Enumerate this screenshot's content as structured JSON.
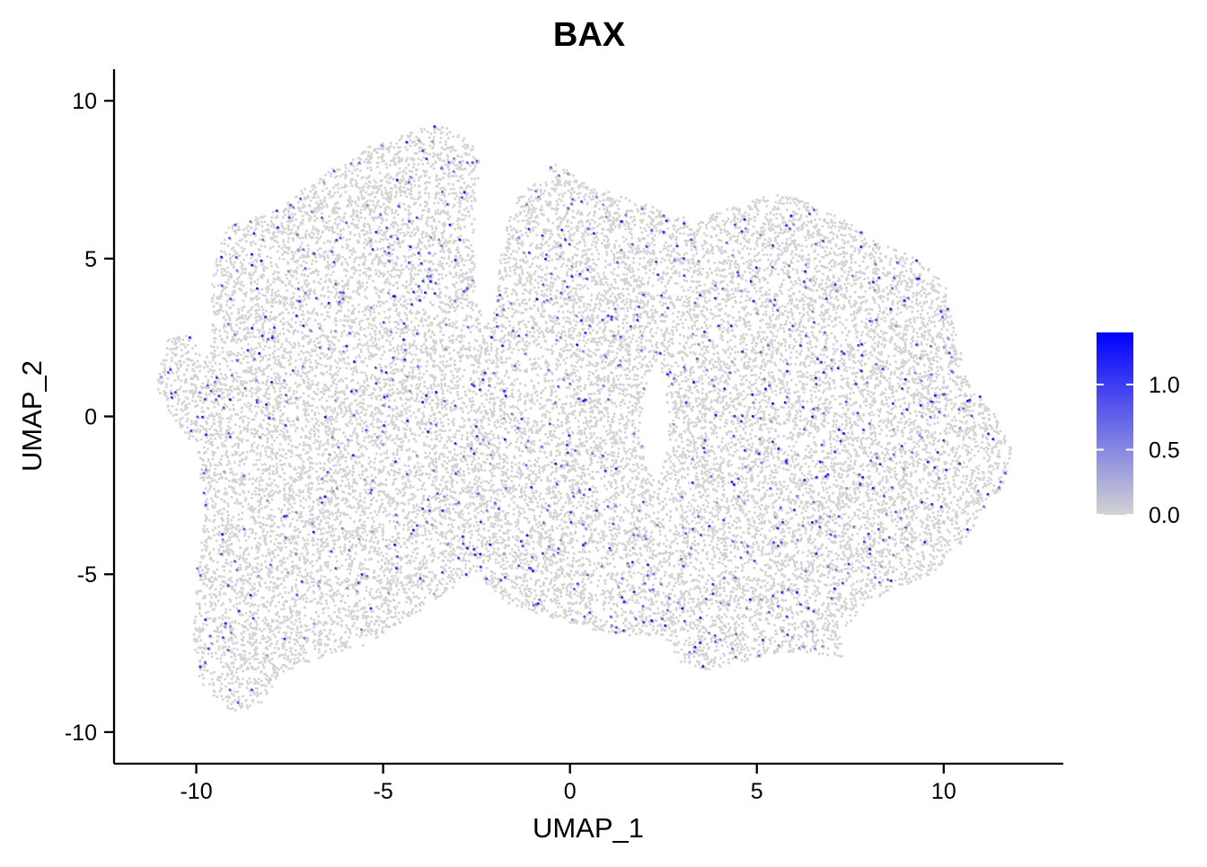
{
  "chart_data": {
    "type": "scatter",
    "title": "BAX",
    "xlabel": "UMAP_1",
    "ylabel": "UMAP_2",
    "xlim": [
      -12.2,
      13.2
    ],
    "ylim": [
      -11.0,
      11.0
    ],
    "x_ticks": [
      {
        "value": -10,
        "label": "-10"
      },
      {
        "value": -5,
        "label": "-5"
      },
      {
        "value": 0,
        "label": "0"
      },
      {
        "value": 5,
        "label": "5"
      },
      {
        "value": 10,
        "label": "10"
      }
    ],
    "y_ticks": [
      {
        "value": 10,
        "label": "10"
      },
      {
        "value": 5,
        "label": "5"
      },
      {
        "value": 0,
        "label": "0"
      },
      {
        "value": -5,
        "label": "-5"
      },
      {
        "value": -10,
        "label": "-10"
      }
    ],
    "grid": false,
    "legend_position": "right",
    "color_scale": {
      "low": "#d3d3d3",
      "high": "#0000ff",
      "min": 0.0,
      "max": 1.4,
      "ticks": [
        {
          "value": 1.0,
          "label": "1.0"
        },
        {
          "value": 0.5,
          "label": "0.5"
        },
        {
          "value": 0.0,
          "label": "0.0"
        }
      ]
    },
    "cell_cloud": {
      "count": 22000,
      "boundary": [
        [
          -10.8,
          2.5
        ],
        [
          -10.2,
          2.6
        ],
        [
          -9.8,
          1.8
        ],
        [
          -9.6,
          4.5
        ],
        [
          -9.3,
          6.0
        ],
        [
          -7.8,
          6.6
        ],
        [
          -6.8,
          7.6
        ],
        [
          -5.6,
          8.5
        ],
        [
          -4.5,
          9.0
        ],
        [
          -3.5,
          9.3
        ],
        [
          -2.7,
          8.8
        ],
        [
          -2.3,
          7.6
        ],
        [
          -2.6,
          6.1
        ],
        [
          -2.2,
          5.1
        ],
        [
          -1.9,
          5.1
        ],
        [
          -1.6,
          6.7
        ],
        [
          -1.0,
          7.5
        ],
        [
          -0.4,
          8.1
        ],
        [
          0.5,
          7.3
        ],
        [
          1.5,
          7.0
        ],
        [
          2.6,
          6.5
        ],
        [
          3.4,
          6.2
        ],
        [
          4.6,
          6.9
        ],
        [
          5.8,
          7.1
        ],
        [
          7.0,
          6.5
        ],
        [
          8.0,
          5.7
        ],
        [
          9.3,
          5.0
        ],
        [
          10.0,
          4.3
        ],
        [
          10.3,
          2.6
        ],
        [
          10.7,
          1.0
        ],
        [
          11.3,
          0.2
        ],
        [
          11.8,
          -1.0
        ],
        [
          11.6,
          -2.1
        ],
        [
          11.0,
          -3.0
        ],
        [
          10.5,
          -4.0
        ],
        [
          9.5,
          -5.1
        ],
        [
          8.0,
          -5.8
        ],
        [
          7.2,
          -6.8
        ],
        [
          7.3,
          -7.6
        ],
        [
          5.6,
          -7.4
        ],
        [
          4.8,
          -7.7
        ],
        [
          3.6,
          -8.0
        ],
        [
          2.9,
          -7.8
        ],
        [
          2.5,
          -6.9
        ],
        [
          1.5,
          -6.9
        ],
        [
          0.5,
          -6.7
        ],
        [
          -0.6,
          -6.3
        ],
        [
          -1.7,
          -5.9
        ],
        [
          -2.6,
          -4.9
        ],
        [
          -4.0,
          -6.1
        ],
        [
          -5.5,
          -7.2
        ],
        [
          -6.7,
          -7.6
        ],
        [
          -7.8,
          -8.1
        ],
        [
          -8.3,
          -9.2
        ],
        [
          -9.1,
          -9.3
        ],
        [
          -9.9,
          -8.6
        ],
        [
          -10.1,
          -7.0
        ],
        [
          -10.0,
          -5.0
        ],
        [
          -9.8,
          -3.0
        ],
        [
          -10.0,
          -1.0
        ],
        [
          -10.7,
          0.0
        ],
        [
          -11.1,
          1.0
        ]
      ],
      "gaps": [
        {
          "x": -2.25,
          "y": 5.6,
          "rx": 0.35,
          "ry": 2.6
        },
        {
          "x": 2.25,
          "y": -0.2,
          "rx": 0.35,
          "ry": 1.7
        }
      ]
    }
  }
}
